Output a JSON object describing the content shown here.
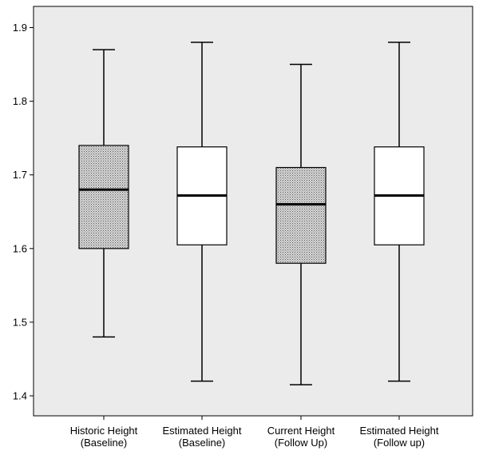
{
  "chart_data": {
    "type": "boxplot",
    "title": "",
    "xlabel": "",
    "ylabel": "",
    "ylim": [
      1.38,
      1.93
    ],
    "yticks": [
      1.4,
      1.5,
      1.6,
      1.7,
      1.8,
      1.9
    ],
    "ytick_labels": [
      "1.4",
      "1.5",
      "1.6",
      "1.7",
      "1.8",
      "1.9"
    ],
    "grid": false,
    "legend": "none",
    "plot_background": "#ebebeb",
    "box_fill_colors": {
      "pattern": "#b8b8b8",
      "plain": "#ffffff"
    },
    "boxes": [
      {
        "label_line1": "Historic Height",
        "label_line2": "(Baseline)",
        "min": 1.48,
        "q1": 1.6,
        "median": 1.68,
        "q3": 1.74,
        "max": 1.87,
        "fill": "pattern"
      },
      {
        "label_line1": "Estimated Height",
        "label_line2": "(Baseline)",
        "min": 1.42,
        "q1": 1.605,
        "median": 1.672,
        "q3": 1.738,
        "max": 1.88,
        "fill": "plain"
      },
      {
        "label_line1": "Current Height",
        "label_line2": "(Follow Up)",
        "min": 1.415,
        "q1": 1.58,
        "median": 1.66,
        "q3": 1.71,
        "max": 1.85,
        "fill": "pattern"
      },
      {
        "label_line1": "Estimated Height",
        "label_line2": "(Follow up)",
        "min": 1.42,
        "q1": 1.605,
        "median": 1.672,
        "q3": 1.738,
        "max": 1.88,
        "fill": "plain"
      }
    ]
  }
}
